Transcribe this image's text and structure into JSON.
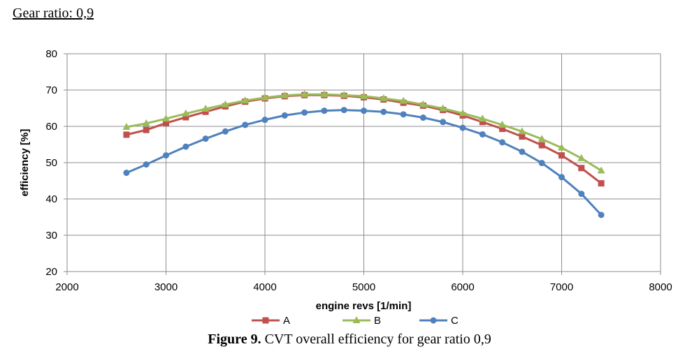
{
  "heading": "Gear ratio: 0,9",
  "caption": {
    "label": "Figure 9.",
    "text": " CVT overall efficiency for gear ratio 0,9"
  },
  "chart_data": {
    "type": "line",
    "title": "",
    "xlabel": "engine revs [1/min]",
    "ylabel": "efficiency [%]",
    "xlim": [
      2000,
      8000
    ],
    "ylim": [
      20,
      80
    ],
    "xticks": [
      2000,
      3000,
      4000,
      5000,
      6000,
      7000,
      8000
    ],
    "yticks": [
      20,
      30,
      40,
      50,
      60,
      70,
      80
    ],
    "grid": true,
    "legend_position": "bottom",
    "x": [
      2600,
      2800,
      3000,
      3200,
      3400,
      3600,
      3800,
      4000,
      4200,
      4400,
      4600,
      4800,
      5000,
      5200,
      5400,
      5600,
      5800,
      6000,
      6200,
      6400,
      6600,
      6800,
      7000,
      7200,
      7400
    ],
    "series": [
      {
        "name": "A",
        "color": "#c0504d",
        "marker": "square",
        "values": [
          57.7,
          59.0,
          60.9,
          62.5,
          64.0,
          65.5,
          66.8,
          67.7,
          68.3,
          68.6,
          68.6,
          68.4,
          68.0,
          67.4,
          66.5,
          65.7,
          64.5,
          63.0,
          61.2,
          59.3,
          57.2,
          54.8,
          52.0,
          48.5,
          44.3
        ]
      },
      {
        "name": "B",
        "color": "#9bbb59",
        "marker": "triangle",
        "values": [
          59.8,
          60.8,
          62.1,
          63.5,
          64.8,
          66.0,
          67.1,
          67.9,
          68.5,
          68.8,
          68.8,
          68.6,
          68.3,
          67.7,
          67.0,
          66.0,
          64.9,
          63.6,
          62.1,
          60.4,
          58.6,
          56.5,
          54.1,
          51.2,
          47.8
        ]
      },
      {
        "name": "C",
        "color": "#4f81bd",
        "marker": "circle",
        "values": [
          47.2,
          49.5,
          52.0,
          54.4,
          56.6,
          58.6,
          60.4,
          61.8,
          63.0,
          63.8,
          64.3,
          64.5,
          64.3,
          64.0,
          63.3,
          62.4,
          61.2,
          59.6,
          57.8,
          55.6,
          53.0,
          49.9,
          46.0,
          41.4,
          35.6
        ]
      }
    ]
  }
}
